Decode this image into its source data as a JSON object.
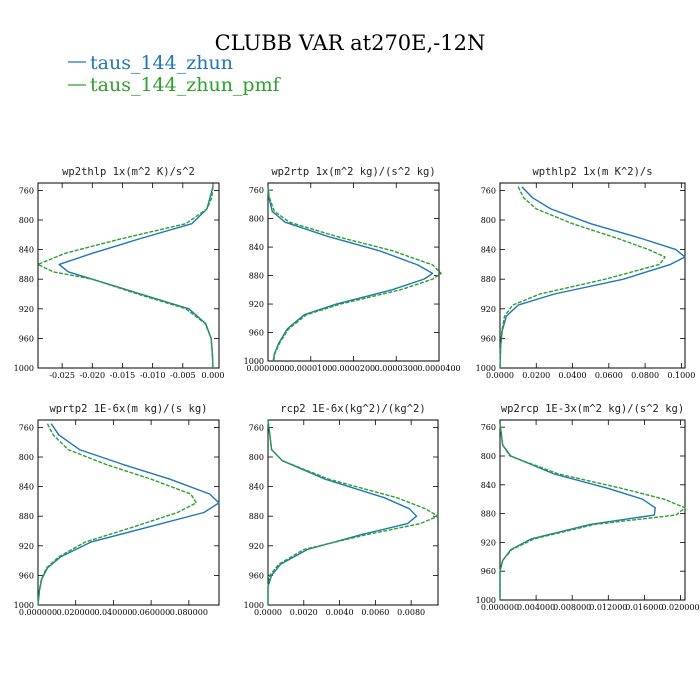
{
  "figure": {
    "title": "CLUBB VAR at270E,-12N",
    "legend": [
      {
        "label": "taus_144_zhun",
        "color": "#1f77b4",
        "dash": "solid"
      },
      {
        "label": "taus_144_zhun_pmf",
        "color": "#2ca02c",
        "dash": "dashed"
      }
    ]
  },
  "chart_data": [
    {
      "type": "line",
      "title": "wp2thlp  1x(m^2 K)/s^2",
      "ylim": [
        1000,
        750
      ],
      "xlim": [
        -0.029,
        0.001
      ],
      "yticks": [
        760,
        800,
        840,
        880,
        920,
        960,
        1000
      ],
      "xticks": [
        -0.025,
        -0.02,
        -0.015,
        -0.01,
        -0.005,
        0.0
      ],
      "xtick_labels": [
        "-0.025",
        "-0.020",
        "-0.015",
        "-0.010",
        "-0.005",
        "0.000"
      ],
      "y": [
        755,
        770,
        785,
        805,
        825,
        845,
        860,
        870,
        880,
        900,
        920,
        940,
        960,
        980,
        1000
      ],
      "series": [
        {
          "name": "taus_144_zhun",
          "x": [
            0.0,
            -0.0005,
            -0.001,
            -0.0035,
            -0.012,
            -0.02,
            -0.0255,
            -0.024,
            -0.02,
            -0.012,
            -0.004,
            -0.0012,
            -0.0003,
            -0.0001,
            0.0
          ]
        },
        {
          "name": "taus_144_zhun_pmf",
          "x": [
            0.0,
            -0.0002,
            -0.001,
            -0.0045,
            -0.015,
            -0.0245,
            -0.029,
            -0.0265,
            -0.02,
            -0.0125,
            -0.0045,
            -0.0013,
            -0.0003,
            -0.0001,
            0.0
          ]
        }
      ]
    },
    {
      "type": "line",
      "title": "wp2rtp  1x(m^2 kg)/(s^2 kg)",
      "ylim": [
        1000,
        750
      ],
      "xlim": [
        0,
        4e-05
      ],
      "yticks": [
        760,
        800,
        840,
        880,
        920,
        960,
        1000
      ],
      "xticks": [
        0,
        1e-05,
        2e-05,
        3e-05,
        4e-05
      ],
      "xtick_labels": [
        "0.0000000",
        "0.0000100",
        "0.0000200",
        "0.0000300",
        "0.0000400"
      ],
      "y": [
        755,
        770,
        790,
        805,
        825,
        845,
        865,
        877,
        885,
        900,
        920,
        935,
        955,
        975,
        990,
        1000
      ],
      "series": [
        {
          "name": "taus_144_zhun",
          "x": [
            0.0,
            2e-07,
            1e-06,
            4e-06,
            1.4e-05,
            2.6e-05,
            3.5e-05,
            3.85e-05,
            3.65e-05,
            2.9e-05,
            1.6e-05,
            8.5e-06,
            4.5e-06,
            2.5e-06,
            1.5e-06,
            1.2e-06
          ]
        },
        {
          "name": "taus_144_zhun_pmf",
          "x": [
            0.0,
            3e-07,
            1.5e-06,
            5e-06,
            1.6e-05,
            2.9e-05,
            3.85e-05,
            4.05e-05,
            3.85e-05,
            3.1e-05,
            1.7e-05,
            9e-06,
            4.8e-06,
            2.7e-06,
            1.6e-06,
            1.3e-06
          ]
        }
      ]
    },
    {
      "type": "line",
      "title": "wpthlp2  1x(m K^2)/s",
      "ylim": [
        1000,
        750
      ],
      "xlim": [
        0,
        0.102
      ],
      "yticks": [
        760,
        800,
        840,
        880,
        920,
        960,
        1000
      ],
      "xticks": [
        0,
        0.02,
        0.04,
        0.06,
        0.08,
        0.1
      ],
      "xtick_labels": [
        "0.0000",
        "0.0200",
        "0.0400",
        "0.0600",
        "0.0800",
        "0.1000"
      ],
      "y": [
        755,
        770,
        785,
        805,
        825,
        840,
        850,
        860,
        880,
        900,
        915,
        930,
        950,
        970,
        1000
      ],
      "series": [
        {
          "name": "taus_144_zhun",
          "x": [
            0.012,
            0.018,
            0.028,
            0.05,
            0.078,
            0.097,
            0.102,
            0.094,
            0.068,
            0.03,
            0.01,
            0.0035,
            0.0012,
            0.0004,
            0.0
          ]
        },
        {
          "name": "taus_144_zhun_pmf",
          "x": [
            0.01,
            0.013,
            0.02,
            0.04,
            0.065,
            0.082,
            0.091,
            0.088,
            0.058,
            0.022,
            0.007,
            0.0025,
            0.001,
            0.0003,
            0.0
          ]
        }
      ]
    },
    {
      "type": "line",
      "title": "wprtp2  1E-6x(m kg)/(s kg)",
      "ylim": [
        1000,
        750
      ],
      "xlim": [
        0,
        0.096
      ],
      "yticks": [
        760,
        800,
        840,
        880,
        920,
        960,
        1000
      ],
      "xticks": [
        0,
        0.02,
        0.04,
        0.06,
        0.08
      ],
      "xtick_labels": [
        "0.000000",
        "0.020000",
        "0.040000",
        "0.060000",
        "0.080000"
      ],
      "y": [
        755,
        770,
        790,
        810,
        830,
        850,
        862,
        875,
        895,
        915,
        935,
        950,
        965,
        980,
        1000
      ],
      "series": [
        {
          "name": "taus_144_zhun",
          "x": [
            0.007,
            0.011,
            0.022,
            0.045,
            0.07,
            0.091,
            0.096,
            0.088,
            0.058,
            0.028,
            0.012,
            0.005,
            0.002,
            0.0008,
            0.0
          ]
        },
        {
          "name": "taus_144_zhun_pmf",
          "x": [
            0.005,
            0.008,
            0.016,
            0.036,
            0.06,
            0.081,
            0.084,
            0.074,
            0.05,
            0.025,
            0.011,
            0.0045,
            0.0018,
            0.0007,
            0.0
          ]
        }
      ]
    },
    {
      "type": "line",
      "title": "rcp2  1E-6x(kg^2)/(kg^2)",
      "ylim": [
        1000,
        750
      ],
      "xlim": [
        0,
        0.0095
      ],
      "yticks": [
        760,
        800,
        840,
        880,
        920,
        960,
        1000
      ],
      "xticks": [
        0,
        0.002,
        0.004,
        0.006,
        0.008
      ],
      "xtick_labels": [
        "0.0000",
        "0.0020",
        "0.0040",
        "0.0060",
        "0.0080"
      ],
      "y": [
        750,
        790,
        805,
        830,
        855,
        870,
        880,
        890,
        905,
        925,
        945,
        960,
        975,
        1000
      ],
      "series": [
        {
          "name": "taus_144_zhun",
          "x": [
            0.0,
            0.0002,
            0.0008,
            0.0032,
            0.0065,
            0.0079,
            0.0083,
            0.0078,
            0.0052,
            0.0022,
            0.0007,
            0.0002,
            0.0,
            0.0
          ]
        },
        {
          "name": "taus_144_zhun_pmf",
          "x": [
            0.0,
            0.0002,
            0.0008,
            0.0034,
            0.0072,
            0.0088,
            0.0095,
            0.0085,
            0.0055,
            0.002,
            0.0006,
            0.0001,
            0.0,
            0.0
          ]
        }
      ]
    },
    {
      "type": "line",
      "title": "wp2rcp  1E-3x(m^2 kg)/(s^2 kg)",
      "ylim": [
        1000,
        750
      ],
      "xlim": [
        0,
        0.0205
      ],
      "yticks": [
        760,
        800,
        840,
        880,
        920,
        960,
        1000
      ],
      "xticks": [
        0,
        0.004,
        0.008,
        0.012,
        0.016,
        0.02
      ],
      "xtick_labels": [
        "0.000000",
        "0.004000",
        "0.008000",
        "0.012000",
        "0.016000",
        "0.020000"
      ],
      "y": [
        755,
        785,
        800,
        825,
        845,
        860,
        872,
        882,
        895,
        915,
        930,
        945,
        960,
        1000
      ],
      "series": [
        {
          "name": "taus_144_zhun",
          "x": [
            0.0,
            0.0003,
            0.0012,
            0.006,
            0.012,
            0.0158,
            0.0172,
            0.0171,
            0.01,
            0.0035,
            0.0012,
            0.0003,
            0.0,
            0.0
          ]
        },
        {
          "name": "taus_144_zhun_pmf",
          "x": [
            0.0,
            0.0003,
            0.0011,
            0.0065,
            0.0135,
            0.0182,
            0.0205,
            0.0195,
            0.0105,
            0.0038,
            0.0013,
            0.0003,
            0.0,
            0.0
          ]
        }
      ]
    }
  ]
}
